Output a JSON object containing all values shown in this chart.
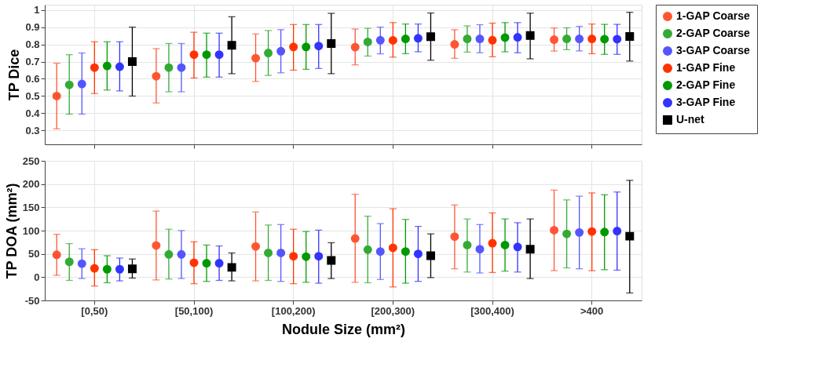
{
  "chart_data": [
    {
      "type": "scatter",
      "ylabel": "TP Dice",
      "ylim": [
        0.22,
        1.03
      ],
      "yticks": [
        0.3,
        0.4,
        0.5,
        0.6,
        0.7,
        0.8,
        0.9,
        1
      ],
      "grid": true,
      "legend": "right",
      "tick_labels": "y",
      "series": [
        {
          "name": "1-GAP Coarse",
          "color": "#ff5533",
          "marker": "circle",
          "values": [
            0.5,
            0.615,
            0.72,
            0.784,
            0.8,
            0.827
          ],
          "errors": [
            [
              0.31,
              0.69
            ],
            [
              0.46,
              0.775
            ],
            [
              0.585,
              0.86
            ],
            [
              0.681,
              0.889
            ],
            [
              0.719,
              0.885
            ],
            [
              0.761,
              0.895
            ]
          ]
        },
        {
          "name": "2-GAP Coarse",
          "color": "#33aa33",
          "marker": "circle",
          "values": [
            0.565,
            0.665,
            0.75,
            0.814,
            0.832,
            0.832
          ],
          "errors": [
            [
              0.395,
              0.74
            ],
            [
              0.525,
              0.805
            ],
            [
              0.62,
              0.88
            ],
            [
              0.732,
              0.893
            ],
            [
              0.755,
              0.907
            ],
            [
              0.769,
              0.896
            ]
          ]
        },
        {
          "name": "3-GAP Coarse",
          "color": "#5555ff",
          "marker": "circle",
          "values": [
            0.57,
            0.665,
            0.76,
            0.824,
            0.832,
            0.832
          ],
          "errors": [
            [
              0.395,
              0.75
            ],
            [
              0.525,
              0.805
            ],
            [
              0.635,
              0.885
            ],
            [
              0.745,
              0.9
            ],
            [
              0.751,
              0.914
            ],
            [
              0.762,
              0.904
            ]
          ]
        },
        {
          "name": "1-GAP Fine",
          "color": "#ff3300",
          "marker": "circle",
          "values": [
            0.665,
            0.74,
            0.785,
            0.823,
            0.824,
            0.832
          ],
          "errors": [
            [
              0.515,
              0.815
            ],
            [
              0.605,
              0.87
            ],
            [
              0.65,
              0.915
            ],
            [
              0.726,
              0.926
            ],
            [
              0.728,
              0.923
            ],
            [
              0.746,
              0.918
            ]
          ]
        },
        {
          "name": "2-GAP Fine",
          "color": "#009900",
          "marker": "circle",
          "values": [
            0.675,
            0.74,
            0.785,
            0.832,
            0.839,
            0.83
          ],
          "errors": [
            [
              0.535,
              0.815
            ],
            [
              0.61,
              0.865
            ],
            [
              0.655,
              0.915
            ],
            [
              0.746,
              0.918
            ],
            [
              0.757,
              0.926
            ],
            [
              0.742,
              0.916
            ]
          ]
        },
        {
          "name": "3-GAP Fine",
          "color": "#3333ff",
          "marker": "circle",
          "values": [
            0.67,
            0.74,
            0.79,
            0.835,
            0.841,
            0.83
          ],
          "errors": [
            [
              0.53,
              0.815
            ],
            [
              0.61,
              0.865
            ],
            [
              0.66,
              0.915
            ],
            [
              0.757,
              0.918
            ],
            [
              0.751,
              0.926
            ],
            [
              0.742,
              0.916
            ]
          ]
        },
        {
          "name": "U-net",
          "color": "#000000",
          "marker": "square",
          "values": [
            0.7,
            0.795,
            0.805,
            0.845,
            0.851,
            0.846
          ],
          "errors": [
            [
              0.5,
              0.9
            ],
            [
              0.63,
              0.96
            ],
            [
              0.63,
              0.98
            ],
            [
              0.708,
              0.982
            ],
            [
              0.716,
              0.981
            ],
            [
              0.703,
              0.986
            ]
          ]
        }
      ]
    },
    {
      "type": "scatter",
      "ylabel": "TP DOA (mm²)",
      "xlabel": "Nodule Size (mm²)",
      "categories": [
        "[0,50)",
        "[50,100)",
        "[100,200)",
        "[200,300)",
        "[300,400)",
        ">400"
      ],
      "ylim": [
        -50,
        250
      ],
      "yticks": [
        -50,
        0,
        50,
        100,
        150,
        200,
        250
      ],
      "grid": true,
      "series": [
        {
          "color": "#ff5533",
          "marker": "circle",
          "values": [
            48,
            68,
            66,
            83,
            87,
            101
          ],
          "errors": [
            [
              4,
              92
            ],
            [
              -6,
              142
            ],
            [
              -8,
              140
            ],
            [
              -11,
              178
            ],
            [
              18,
              155
            ],
            [
              14,
              187
            ]
          ]
        },
        {
          "color": "#33aa33",
          "marker": "circle",
          "values": [
            33,
            49,
            52,
            59,
            69,
            93
          ],
          "errors": [
            [
              -7,
              72
            ],
            [
              -4,
              103
            ],
            [
              -7,
              112
            ],
            [
              -12,
              131
            ],
            [
              11,
              125
            ],
            [
              20,
              166
            ]
          ]
        },
        {
          "color": "#5555ff",
          "marker": "circle",
          "values": [
            29,
            49,
            52,
            55,
            60,
            96
          ],
          "errors": [
            [
              -3,
              61
            ],
            [
              -3,
              100
            ],
            [
              -9,
              113
            ],
            [
              -5,
              115
            ],
            [
              9,
              113
            ],
            [
              18,
              174
            ]
          ]
        },
        {
          "color": "#ff3300",
          "marker": "circle",
          "values": [
            19,
            31,
            45,
            63,
            73,
            98
          ],
          "errors": [
            [
              -19,
              59
            ],
            [
              -14,
              76
            ],
            [
              -14,
              103
            ],
            [
              -21,
              147
            ],
            [
              10,
              138
            ],
            [
              14,
              181
            ]
          ]
        },
        {
          "color": "#009900",
          "marker": "circle",
          "values": [
            17,
            30,
            44,
            55,
            69,
            97
          ],
          "errors": [
            [
              -12,
              46
            ],
            [
              -9,
              69
            ],
            [
              -11,
              98
            ],
            [
              -13,
              124
            ],
            [
              13,
              125
            ],
            [
              16,
              177
            ]
          ]
        },
        {
          "color": "#3333ff",
          "marker": "circle",
          "values": [
            17,
            30,
            45,
            50,
            65,
            99
          ],
          "errors": [
            [
              -8,
              41
            ],
            [
              -7,
              67
            ],
            [
              -13,
              101
            ],
            [
              -9,
              109
            ],
            [
              11,
              117
            ],
            [
              15,
              183
            ]
          ]
        },
        {
          "color": "#000000",
          "marker": "square",
          "values": [
            18,
            21,
            36,
            46,
            60,
            88
          ],
          "errors": [
            [
              -2,
              39
            ],
            [
              -8,
              52
            ],
            [
              -3,
              74
            ],
            [
              -1,
              93
            ],
            [
              -3,
              125
            ],
            [
              -34,
              208
            ]
          ]
        }
      ]
    }
  ]
}
